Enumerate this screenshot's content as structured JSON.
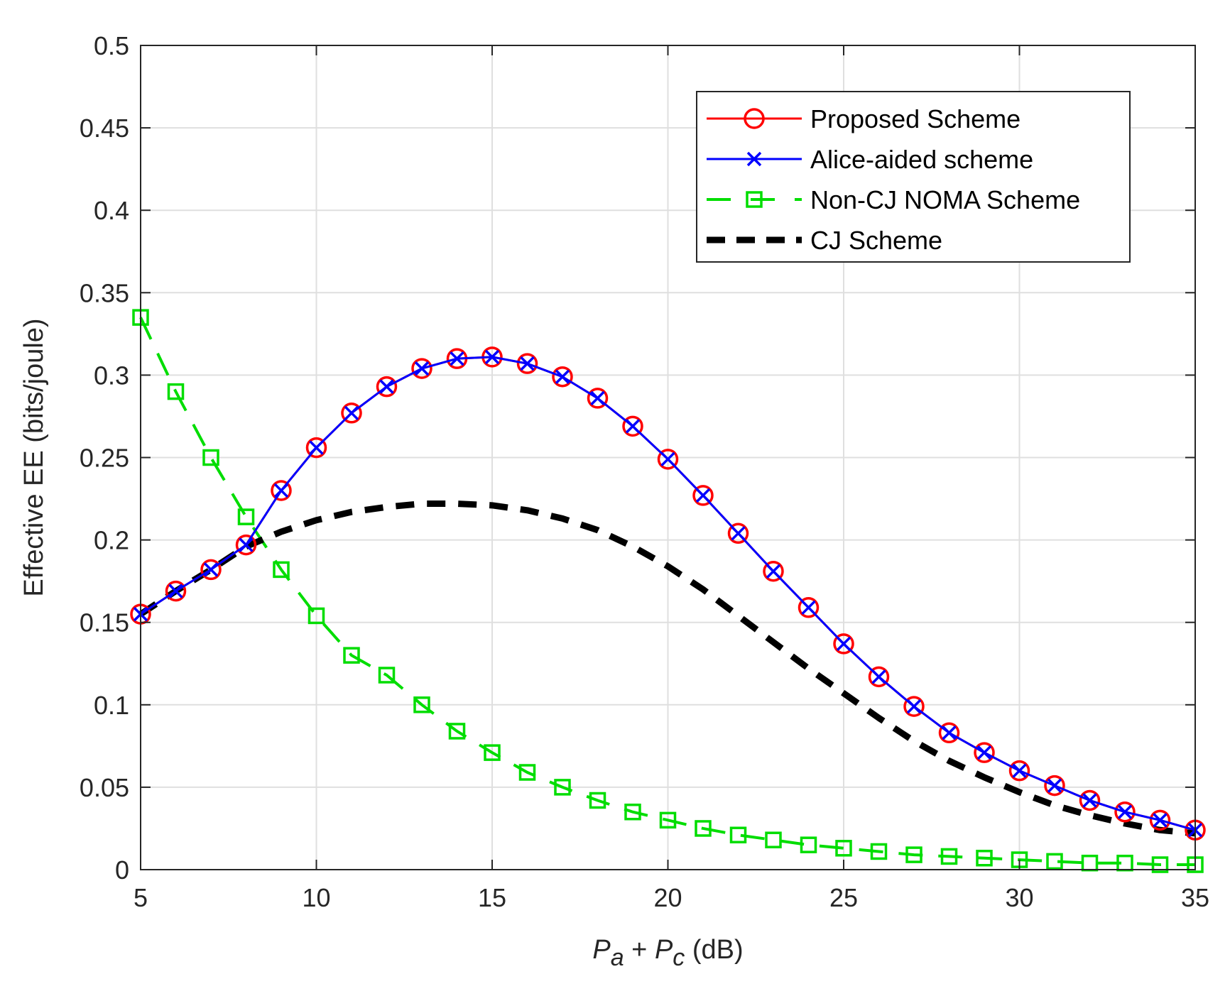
{
  "chart_data": {
    "type": "line",
    "title": "",
    "xlabel": {
      "prefix": "P",
      "sub1": "a",
      "plus": " + ",
      "p2": "P",
      "sub2": "c",
      "unit": " (dB)"
    },
    "ylabel": "Effective EE (bits/joule)",
    "xlim": [
      5,
      35
    ],
    "ylim": [
      0,
      0.5
    ],
    "x_ticks": [
      5,
      10,
      15,
      20,
      25,
      30,
      35
    ],
    "y_ticks": [
      0,
      0.05,
      0.1,
      0.15,
      0.2,
      0.25,
      0.3,
      0.35,
      0.4,
      0.45,
      0.5
    ],
    "x_tick_labels": [
      "5",
      "10",
      "15",
      "20",
      "25",
      "30",
      "35"
    ],
    "y_tick_labels": [
      "0",
      "0.05",
      "0.1",
      "0.15",
      "0.2",
      "0.25",
      "0.3",
      "0.35",
      "0.4",
      "0.45",
      "0.5"
    ],
    "grid": true,
    "legend_position": "top-right",
    "series": [
      {
        "name": "Proposed Scheme",
        "color": "#ff0000",
        "line": "solid",
        "marker": "circle",
        "x": [
          5,
          6,
          7,
          8,
          9,
          10,
          11,
          12,
          13,
          14,
          15,
          16,
          17,
          18,
          19,
          20,
          21,
          22,
          23,
          24,
          25,
          26,
          27,
          28,
          29,
          30,
          31,
          32,
          33,
          34,
          35
        ],
        "values": [
          0.155,
          0.169,
          0.182,
          0.197,
          0.23,
          0.256,
          0.277,
          0.293,
          0.304,
          0.31,
          0.311,
          0.307,
          0.299,
          0.286,
          0.269,
          0.249,
          0.227,
          0.204,
          0.181,
          0.159,
          0.137,
          0.117,
          0.099,
          0.083,
          0.071,
          0.06,
          0.051,
          0.042,
          0.035,
          0.03,
          0.024
        ]
      },
      {
        "name": "Alice-aided scheme",
        "color": "#0000ff",
        "line": "solid",
        "marker": "x",
        "x": [
          5,
          6,
          7,
          8,
          9,
          10,
          11,
          12,
          13,
          14,
          15,
          16,
          17,
          18,
          19,
          20,
          21,
          22,
          23,
          24,
          25,
          26,
          27,
          28,
          29,
          30,
          31,
          32,
          33,
          34,
          35
        ],
        "values": [
          0.155,
          0.169,
          0.182,
          0.197,
          0.23,
          0.256,
          0.277,
          0.293,
          0.304,
          0.31,
          0.311,
          0.307,
          0.299,
          0.286,
          0.269,
          0.249,
          0.227,
          0.204,
          0.181,
          0.159,
          0.137,
          0.117,
          0.099,
          0.083,
          0.071,
          0.06,
          0.051,
          0.042,
          0.035,
          0.03,
          0.024
        ]
      },
      {
        "name": "Non-CJ NOMA Scheme",
        "color": "#00dd00",
        "line": "dashed",
        "marker": "square",
        "x": [
          5,
          6,
          7,
          8,
          9,
          10,
          11,
          12,
          13,
          14,
          15,
          16,
          17,
          18,
          19,
          20,
          21,
          22,
          23,
          24,
          25,
          26,
          27,
          28,
          29,
          30,
          31,
          32,
          33,
          34,
          35
        ],
        "values": [
          0.335,
          0.29,
          0.25,
          0.214,
          0.182,
          0.154,
          0.13,
          0.118,
          0.1,
          0.084,
          0.071,
          0.059,
          0.05,
          0.042,
          0.035,
          0.03,
          0.025,
          0.021,
          0.018,
          0.015,
          0.013,
          0.011,
          0.009,
          0.008,
          0.007,
          0.006,
          0.005,
          0.004,
          0.004,
          0.003,
          0.003
        ]
      },
      {
        "name": "CJ Scheme",
        "color": "#000000",
        "line": "thick-dashed",
        "marker": "none",
        "x": [
          5,
          6,
          7,
          8,
          9,
          10,
          11,
          12,
          13,
          14,
          15,
          16,
          17,
          18,
          19,
          20,
          21,
          22,
          23,
          24,
          25,
          26,
          27,
          28,
          29,
          30,
          31,
          32,
          33,
          34,
          35
        ],
        "values": [
          0.155,
          0.169,
          0.182,
          0.196,
          0.205,
          0.212,
          0.217,
          0.22,
          0.222,
          0.222,
          0.221,
          0.218,
          0.213,
          0.206,
          0.196,
          0.184,
          0.17,
          0.154,
          0.138,
          0.122,
          0.107,
          0.092,
          0.078,
          0.066,
          0.056,
          0.047,
          0.039,
          0.033,
          0.028,
          0.024,
          0.022
        ]
      }
    ]
  }
}
